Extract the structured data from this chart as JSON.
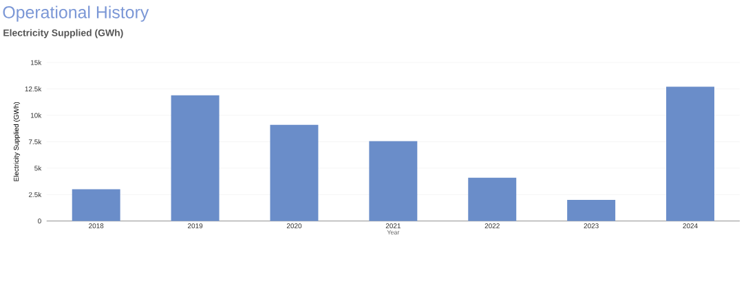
{
  "chart_data": {
    "type": "bar",
    "title": "Operational History",
    "subtitle": "Electricity Supplied (GWh)",
    "xlabel": "Year",
    "ylabel": "Electricity Supplied (GWh)",
    "categories": [
      "2018",
      "2019",
      "2020",
      "2021",
      "2022",
      "2023",
      "2024"
    ],
    "values": [
      3000,
      11900,
      9100,
      7550,
      4100,
      2000,
      12700
    ],
    "color": "#6a8dc9",
    "ylim": [
      0,
      15000
    ],
    "yticks": [
      0,
      {
        "value": 2500,
        "label": "2.5k"
      },
      {
        "value": 5000,
        "label": "5k"
      },
      {
        "value": 7500,
        "label": "7.5k"
      },
      {
        "value": 10000,
        "label": "10k"
      },
      {
        "value": 12500,
        "label": "12.5k"
      },
      {
        "value": 15000,
        "label": "15k"
      }
    ],
    "grid": "y"
  }
}
